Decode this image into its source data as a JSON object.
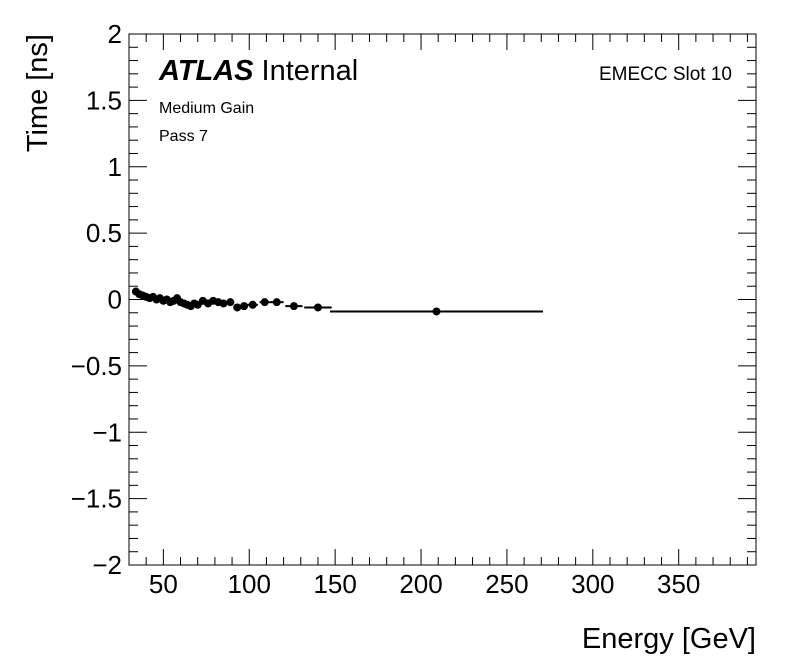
{
  "chart_data": {
    "type": "scatter",
    "title": "",
    "xlabel": "Energy [GeV]",
    "ylabel": "Time [ns]",
    "xlim": [
      30,
      395
    ],
    "ylim": [
      -2,
      2
    ],
    "xticks": [
      50,
      100,
      150,
      200,
      250,
      300,
      350
    ],
    "yticks": [
      -2,
      -1.5,
      -1,
      -0.5,
      0,
      0.5,
      1,
      1.5,
      2
    ],
    "ytick_labels": [
      "−2",
      "−1.5",
      "−1",
      "−0.5",
      "0",
      "0.5",
      "1",
      "1.5",
      "2"
    ],
    "grid": false,
    "legend": "none",
    "marker_color": "#000000",
    "annotations": {
      "experiment": "ATLAS",
      "status": "Internal",
      "gain": "Medium Gain",
      "pass": "Pass 7",
      "slot": "EMECC Slot 10"
    },
    "series": [
      {
        "points": [
          {
            "x": 34,
            "y": 0.06,
            "xerr": 1
          },
          {
            "x": 36,
            "y": 0.04,
            "xerr": 1
          },
          {
            "x": 38,
            "y": 0.03,
            "xerr": 1
          },
          {
            "x": 40,
            "y": 0.02,
            "xerr": 1
          },
          {
            "x": 42,
            "y": 0.01,
            "xerr": 1
          },
          {
            "x": 44,
            "y": 0.02,
            "xerr": 1
          },
          {
            "x": 46,
            "y": 0.0,
            "xerr": 1
          },
          {
            "x": 48,
            "y": 0.01,
            "xerr": 1
          },
          {
            "x": 50,
            "y": -0.01,
            "xerr": 1
          },
          {
            "x": 52,
            "y": 0.0,
            "xerr": 1
          },
          {
            "x": 54,
            "y": -0.02,
            "xerr": 1
          },
          {
            "x": 56,
            "y": -0.01,
            "xerr": 1
          },
          {
            "x": 58,
            "y": 0.01,
            "xerr": 1
          },
          {
            "x": 60,
            "y": -0.02,
            "xerr": 1
          },
          {
            "x": 62,
            "y": -0.03,
            "xerr": 1
          },
          {
            "x": 64,
            "y": -0.04,
            "xerr": 1
          },
          {
            "x": 66,
            "y": -0.05,
            "xerr": 1
          },
          {
            "x": 68,
            "y": -0.03,
            "xerr": 1
          },
          {
            "x": 70,
            "y": -0.04,
            "xerr": 1
          },
          {
            "x": 73,
            "y": -0.01,
            "xerr": 1.5
          },
          {
            "x": 76,
            "y": -0.03,
            "xerr": 1.5
          },
          {
            "x": 79,
            "y": -0.01,
            "xerr": 1.5
          },
          {
            "x": 82,
            "y": -0.02,
            "xerr": 1.5
          },
          {
            "x": 85,
            "y": -0.03,
            "xerr": 1.5
          },
          {
            "x": 89,
            "y": -0.02,
            "xerr": 2
          },
          {
            "x": 93,
            "y": -0.06,
            "xerr": 2
          },
          {
            "x": 97,
            "y": -0.05,
            "xerr": 2
          },
          {
            "x": 102,
            "y": -0.04,
            "xerr": 3
          },
          {
            "x": 109,
            "y": -0.02,
            "xerr": 3
          },
          {
            "x": 116,
            "y": -0.02,
            "xerr": 4
          },
          {
            "x": 126,
            "y": -0.05,
            "xerr": 5
          },
          {
            "x": 140,
            "y": -0.06,
            "xerr": 8
          },
          {
            "x": 209,
            "y": -0.09,
            "xerr": 62
          }
        ]
      }
    ]
  }
}
